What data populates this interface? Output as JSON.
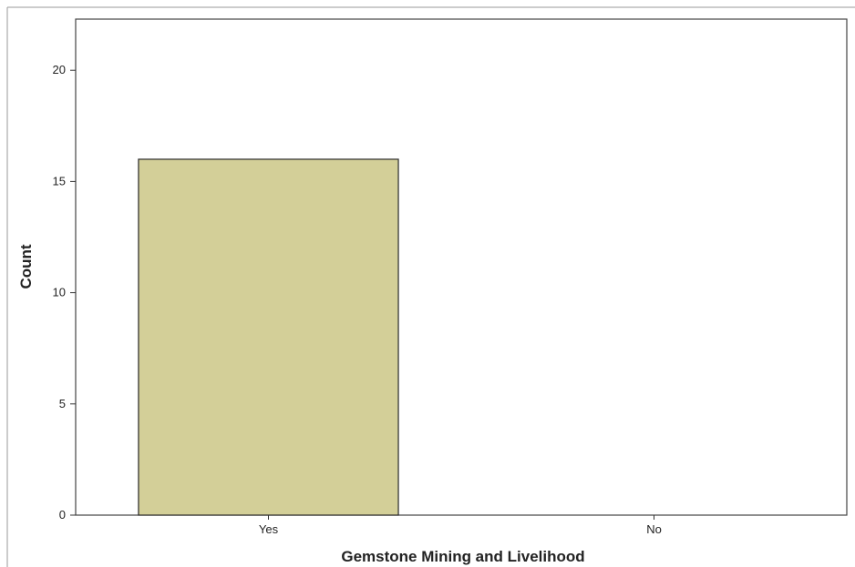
{
  "chart_data": {
    "type": "bar",
    "categories": [
      "Yes",
      "No"
    ],
    "values": [
      16,
      0
    ],
    "xlabel": "Gemstone Mining and Livelihood",
    "ylabel": "Count",
    "ylim": [
      0,
      22.3
    ],
    "yticks": [
      0,
      5,
      10,
      15,
      20
    ],
    "grid": false,
    "legend": "none",
    "colors": {
      "bar_fill": "#d3cf98",
      "bar_stroke": "#2b2b2b",
      "axis": "#333333",
      "frame": "#444444"
    }
  }
}
